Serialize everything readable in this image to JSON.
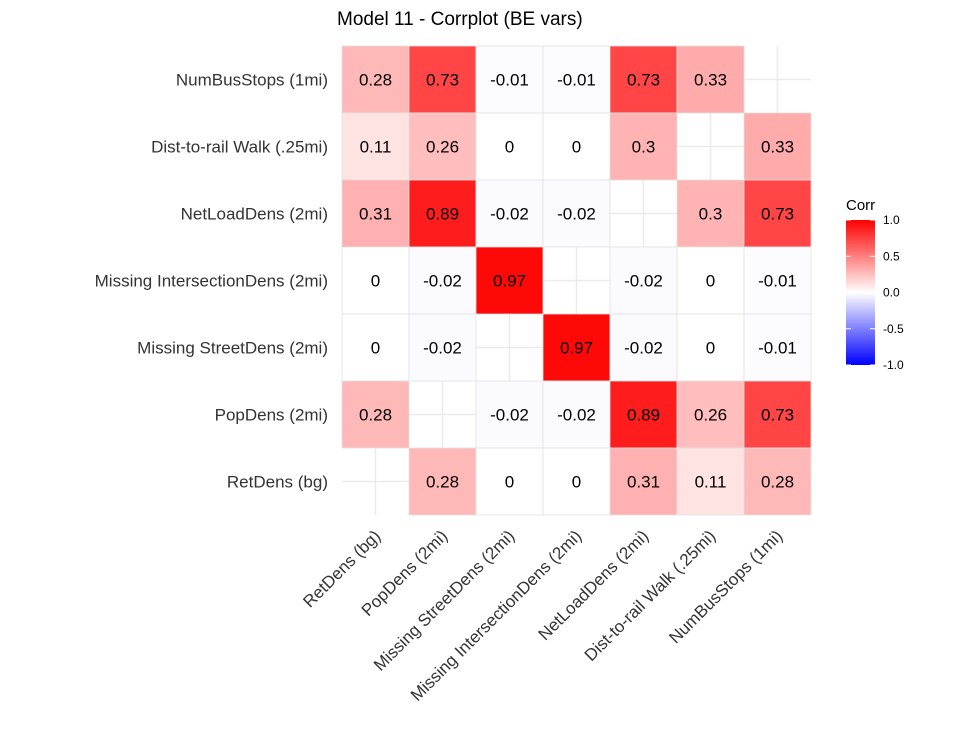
{
  "chart_data": {
    "type": "heatmap",
    "title": "Model 11 - Corrplot (BE vars)",
    "xlabel": "",
    "ylabel": "",
    "x_categories": [
      "RetDens (bg)",
      "PopDens (2mi)",
      "Missing StreetDens (2mi)",
      "Missing IntersectionDens (2mi)",
      "NetLoadDens (2mi)",
      "Dist-to-rail Walk (.25mi)",
      "NumBusStops (1mi)"
    ],
    "y_categories": [
      "NumBusStops (1mi)",
      "Dist-to-rail Walk (.25mi)",
      "NetLoadDens (2mi)",
      "Missing IntersectionDens (2mi)",
      "Missing StreetDens (2mi)",
      "PopDens (2mi)",
      "RetDens (bg)"
    ],
    "values": [
      [
        0.28,
        0.73,
        -0.01,
        -0.01,
        0.73,
        0.33,
        null
      ],
      [
        0.11,
        0.26,
        0,
        0,
        0.3,
        null,
        0.33
      ],
      [
        0.31,
        0.89,
        -0.02,
        -0.02,
        null,
        0.3,
        0.73
      ],
      [
        0,
        -0.02,
        0.97,
        null,
        -0.02,
        0,
        -0.01
      ],
      [
        0,
        -0.02,
        null,
        0.97,
        -0.02,
        0,
        -0.01
      ],
      [
        0.28,
        null,
        -0.02,
        -0.02,
        0.89,
        0.26,
        0.73
      ],
      [
        null,
        0.28,
        0,
        0,
        0.31,
        0.11,
        0.28
      ]
    ],
    "zlim": [
      -1,
      1
    ],
    "legend": {
      "title": "Corr",
      "position": "right",
      "ticks": [
        "1.0",
        "0.5",
        "0.0",
        "-0.5",
        "-1.0"
      ]
    },
    "colors": {
      "low": "#0000ff",
      "mid": "#ffffff",
      "high": "#ff0000"
    },
    "grid": true
  }
}
